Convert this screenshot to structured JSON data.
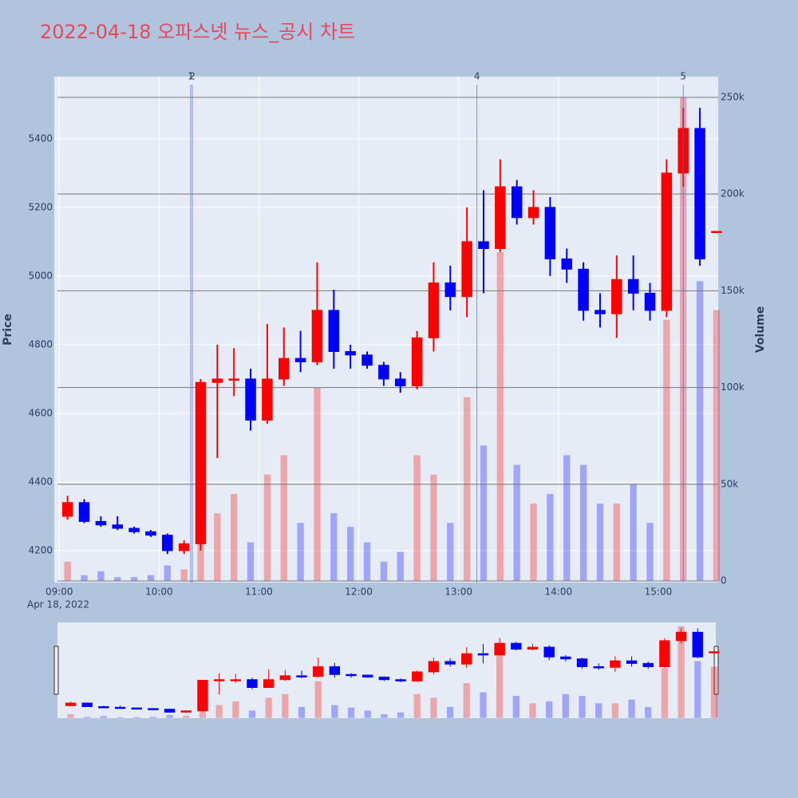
{
  "chart_data": {
    "type": "candlestick",
    "title": "2022-04-18 오파스넷 뉴스_공시 차트",
    "ylabel": "Price",
    "y2label": "Volume",
    "x": [
      "2022-04-18 09:00",
      "2022-04-18 09:10",
      "2022-04-18 09:20",
      "2022-04-18 09:30",
      "2022-04-18 09:40",
      "2022-04-18 09:50",
      "2022-04-18 10:00",
      "2022-04-18 10:10",
      "2022-04-18 10:20",
      "2022-04-18 10:30",
      "2022-04-18 10:40",
      "2022-04-18 10:50",
      "2022-04-18 11:00",
      "2022-04-18 11:10",
      "2022-04-18 11:20",
      "2022-04-18 11:30",
      "2022-04-18 11:40",
      "2022-04-18 11:50",
      "2022-04-18 12:00",
      "2022-04-18 12:10",
      "2022-04-18 12:20",
      "2022-04-18 12:30",
      "2022-04-18 12:40",
      "2022-04-18 12:50",
      "2022-04-18 13:00",
      "2022-04-18 13:10",
      "2022-04-18 13:20",
      "2022-04-18 13:30",
      "2022-04-18 13:40",
      "2022-04-18 13:50",
      "2022-04-18 14:00",
      "2022-04-18 14:10",
      "2022-04-18 14:20",
      "2022-04-18 14:30",
      "2022-04-18 14:40",
      "2022-04-18 14:50",
      "2022-04-18 15:00",
      "2022-04-18 15:10",
      "2022-04-18 15:20",
      "2022-04-18 15:30"
    ],
    "open": [
      4300,
      4340,
      4285,
      4275,
      4265,
      4255,
      4245,
      4200,
      4220,
      4690,
      4700,
      4700,
      4580,
      4700,
      4760,
      4750,
      4900,
      4780,
      4770,
      4740,
      4700,
      4680,
      4820,
      4980,
      4940,
      5100,
      5080,
      5260,
      5170,
      5200,
      5050,
      5020,
      4900,
      4890,
      4990,
      4950,
      4900,
      5300,
      5430,
      5130
    ],
    "high": [
      4360,
      4350,
      4300,
      4300,
      4270,
      4260,
      4250,
      4230,
      4700,
      4800,
      4790,
      4730,
      4860,
      4850,
      4840,
      5040,
      4960,
      4800,
      4780,
      4750,
      4720,
      4840,
      5040,
      5030,
      5200,
      5250,
      5340,
      5280,
      5250,
      5230,
      5080,
      5040,
      4950,
      5060,
      5060,
      4980,
      5340,
      5490,
      5490,
      5130
    ],
    "low": [
      4290,
      4280,
      4270,
      4260,
      4250,
      4240,
      4190,
      4190,
      4200,
      4470,
      4650,
      4550,
      4570,
      4680,
      4720,
      4740,
      4730,
      4730,
      4730,
      4680,
      4660,
      4670,
      4780,
      4900,
      4880,
      4950,
      5070,
      5150,
      5150,
      5000,
      4980,
      4870,
      4850,
      4820,
      4900,
      4870,
      4880,
      5260,
      5030,
      5130
    ],
    "close": [
      4340,
      4285,
      4275,
      4265,
      4255,
      4245,
      4200,
      4220,
      4690,
      4700,
      4700,
      4580,
      4700,
      4760,
      4750,
      4900,
      4780,
      4770,
      4740,
      4700,
      4680,
      4820,
      4980,
      4940,
      5100,
      5080,
      5260,
      5170,
      5200,
      5050,
      5020,
      4900,
      4890,
      4990,
      4950,
      4900,
      5300,
      5430,
      5050,
      5130
    ],
    "volume": [
      10000,
      3000,
      5000,
      2000,
      2000,
      3000,
      8000,
      6000,
      40000,
      35000,
      45000,
      20000,
      55000,
      65000,
      30000,
      100000,
      35000,
      28000,
      20000,
      10000,
      15000,
      65000,
      55000,
      30000,
      95000,
      70000,
      170000,
      60000,
      40000,
      45000,
      65000,
      60000,
      40000,
      40000,
      50000,
      30000,
      135000,
      250000,
      155000,
      140000
    ],
    "increasing_color": "#ff0000",
    "decreasing_color": "#0000ff",
    "xlim": [
      "2022-04-18 08:57",
      "2022-04-18 15:36"
    ],
    "xticks": [
      {
        "value": "2022-04-18 09:00",
        "label": "09:00"
      },
      {
        "value": "2022-04-18 10:00",
        "label": "10:00"
      },
      {
        "value": "2022-04-18 11:00",
        "label": "11:00"
      },
      {
        "value": "2022-04-18 12:00",
        "label": "12:00"
      },
      {
        "value": "2022-04-18 13:00",
        "label": "13:00"
      },
      {
        "value": "2022-04-18 14:00",
        "label": "14:00"
      },
      {
        "value": "2022-04-18 15:00",
        "label": "15:00"
      }
    ],
    "x_date_label": "Apr 18, 2022",
    "ylim": [
      4107,
      5581
    ],
    "yticks": [
      4200,
      4400,
      4600,
      4800,
      5000,
      5200,
      5400
    ],
    "y2lim": [
      -800,
      260700
    ],
    "y2ticks": [
      0,
      {
        "value": 50000,
        "label": "50k"
      },
      {
        "value": 100000,
        "label": "100k"
      },
      {
        "value": 150000,
        "label": "150k"
      },
      {
        "value": 200000,
        "label": "200k"
      },
      {
        "value": 250000,
        "label": "250k"
      }
    ],
    "annotations": [
      {
        "x": "2022-04-18 10:19",
        "label": "1"
      },
      {
        "x": "2022-04-18 10:20",
        "label": "2"
      },
      {
        "x": "2022-04-18 13:11",
        "label": "4"
      },
      {
        "x": "2022-04-18 15:15",
        "label": "5"
      }
    ],
    "grid": true,
    "rangeslider": true
  }
}
